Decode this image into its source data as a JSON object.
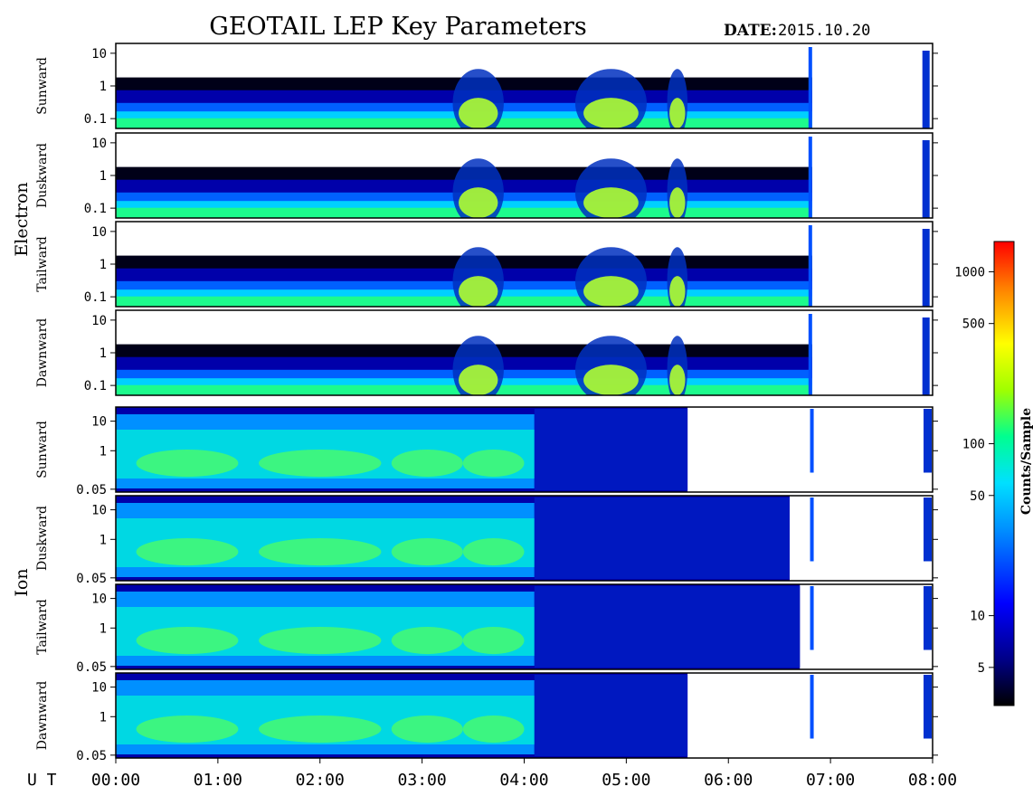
{
  "title": "GEOTAIL LEP Key Parameters",
  "date_label": "DATE:",
  "date_value": "2015.10.20",
  "time_axis_label": "U T",
  "colorbar_label": "Counts/Sample",
  "chart_data": {
    "type": "heatmap",
    "x_axis": {
      "label": "U T",
      "range": [
        "00:00",
        "08:00"
      ],
      "ticks": [
        "00:00",
        "01:00",
        "02:00",
        "03:00",
        "04:00",
        "05:00",
        "06:00",
        "07:00",
        "08:00"
      ]
    },
    "colorbar": {
      "label": "Counts/Sample",
      "scale": "log",
      "range": [
        3,
        1500
      ],
      "ticks": [
        5,
        10,
        50,
        100,
        500,
        1000
      ],
      "tick_labels": [
        "5",
        "10",
        "50",
        "100",
        "500",
        "1000"
      ],
      "colormap": [
        "#000000",
        "#000088",
        "#0000ff",
        "#0090ff",
        "#00e0ff",
        "#00ff90",
        "#a0ff00",
        "#ffff00",
        "#ff8000",
        "#ff0000"
      ]
    },
    "groups": [
      {
        "name": "Electron",
        "y_scale": "log",
        "y_ticks": [
          0.1,
          1,
          10
        ],
        "y_tick_labels": [
          "0.1",
          "1",
          "10"
        ],
        "y_range": [
          0.05,
          20
        ],
        "data_gap_hours": [
          6.82,
          7.9
        ],
        "panels": [
          {
            "direction": "Sunward"
          },
          {
            "direction": "Duskward"
          },
          {
            "direction": "Tailward"
          },
          {
            "direction": "Dawnward"
          }
        ]
      },
      {
        "name": "Ion",
        "y_scale": "log",
        "y_ticks": [
          0.05,
          1,
          10
        ],
        "y_tick_labels": [
          "0.05",
          "1",
          "10"
        ],
        "y_range": [
          0.04,
          30
        ],
        "panels": [
          {
            "direction": "Sunward",
            "coverage_end_hours": 5.6
          },
          {
            "direction": "Duskward",
            "coverage_end_hours": 6.6
          },
          {
            "direction": "Tailward",
            "coverage_end_hours": 6.7
          },
          {
            "direction": "Dawnward",
            "coverage_end_hours": 5.6
          }
        ]
      }
    ]
  }
}
